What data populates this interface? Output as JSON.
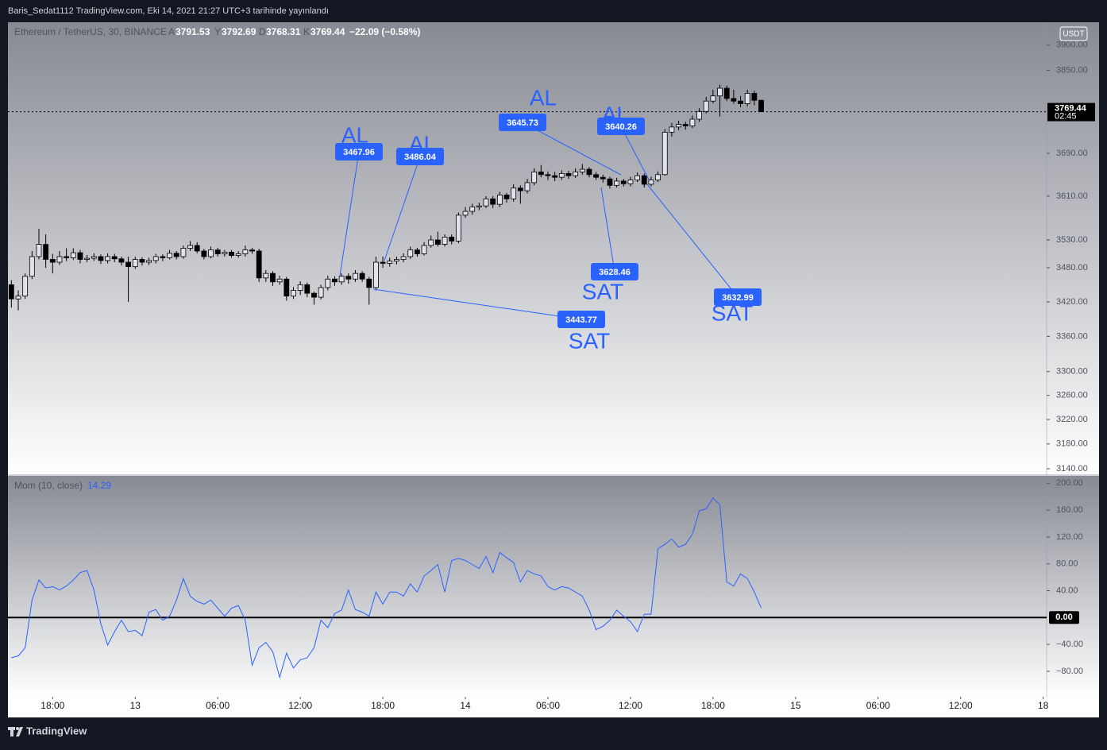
{
  "header": {
    "title": "Baris_Sedat1112 TradingView.com, Eki 14, 2021 21:27 UTC+3 tarihinde yayınlandı"
  },
  "footer": {
    "brand": "TradingView"
  },
  "chart_data": [
    {
      "type": "candlestick",
      "title": "Ethereum / TetherUS, 30, BINANCE",
      "ohlc_labels": [
        "A",
        "Y",
        "D",
        "K"
      ],
      "change_label": "−22.09 (−0.58%)",
      "currency": "USDT",
      "countdown": "02:45",
      "log_scale": true,
      "grid": false,
      "colors": {
        "up": "#e0e3eb",
        "down": "#000000",
        "wick": "#000000",
        "annotation": "#2962ff"
      },
      "xlim": [
        -0.5,
        150.5
      ],
      "ylim": [
        3131,
        3946
      ],
      "yticks": [
        {
          "value": 3900,
          "label": "3900.00"
        },
        {
          "value": 3850,
          "label": "3850.00"
        },
        {
          "value": 3690,
          "label": "3690.00"
        },
        {
          "value": 3610,
          "label": "3610.00"
        },
        {
          "value": 3530,
          "label": "3530.00"
        },
        {
          "value": 3480,
          "label": "3480.00"
        },
        {
          "value": 3420,
          "label": "3420.00"
        },
        {
          "value": 3360,
          "label": "3360.00"
        },
        {
          "value": 3300,
          "label": "3300.00"
        },
        {
          "value": 3260,
          "label": "3260.00"
        },
        {
          "value": 3220,
          "label": "3220.00"
        },
        {
          "value": 3180,
          "label": "3180.00"
        },
        {
          "value": 3140,
          "label": "3140.00"
        }
      ],
      "ohlc": [
        [
          3450,
          3458,
          3410,
          3425
        ],
        [
          3425,
          3440,
          3405,
          3430
        ],
        [
          3430,
          3470,
          3425,
          3465
        ],
        [
          3465,
          3510,
          3460,
          3500
        ],
        [
          3500,
          3550,
          3495,
          3522
        ],
        [
          3522,
          3540,
          3480,
          3495
        ],
        [
          3495,
          3505,
          3470,
          3490
        ],
        [
          3490,
          3510,
          3485,
          3500
        ],
        [
          3500,
          3515,
          3492,
          3498
        ],
        [
          3498,
          3515,
          3494,
          3507
        ],
        [
          3507,
          3512,
          3488,
          3495
        ],
        [
          3495,
          3503,
          3490,
          3497
        ],
        [
          3497,
          3506,
          3492,
          3500
        ],
        [
          3500,
          3504,
          3487,
          3493
        ],
        [
          3493,
          3506,
          3488,
          3500
        ],
        [
          3500,
          3505,
          3490,
          3496
        ],
        [
          3496,
          3500,
          3484,
          3490
        ],
        [
          3490,
          3500,
          3420,
          3482
        ],
        [
          3482,
          3500,
          3478,
          3495
        ],
        [
          3495,
          3499,
          3484,
          3490
        ],
        [
          3490,
          3498,
          3485,
          3493
        ],
        [
          3493,
          3505,
          3488,
          3500
        ],
        [
          3500,
          3504,
          3492,
          3498
        ],
        [
          3498,
          3512,
          3495,
          3506
        ],
        [
          3506,
          3510,
          3495,
          3500
        ],
        [
          3500,
          3520,
          3496,
          3515
        ],
        [
          3515,
          3528,
          3510,
          3520
        ],
        [
          3520,
          3526,
          3506,
          3510
        ],
        [
          3510,
          3514,
          3495,
          3500
        ],
        [
          3500,
          3518,
          3497,
          3512
        ],
        [
          3512,
          3516,
          3500,
          3505
        ],
        [
          3505,
          3512,
          3500,
          3508
        ],
        [
          3508,
          3512,
          3498,
          3502
        ],
        [
          3502,
          3510,
          3498,
          3505
        ],
        [
          3505,
          3520,
          3500,
          3512
        ],
        [
          3512,
          3516,
          3505,
          3510
        ],
        [
          3510,
          3514,
          3455,
          3462
        ],
        [
          3462,
          3476,
          3455,
          3470
        ],
        [
          3470,
          3474,
          3448,
          3455
        ],
        [
          3455,
          3466,
          3450,
          3460
        ],
        [
          3460,
          3464,
          3422,
          3430
        ],
        [
          3430,
          3446,
          3425,
          3440
        ],
        [
          3440,
          3456,
          3432,
          3450
        ],
        [
          3450,
          3454,
          3428,
          3435
        ],
        [
          3435,
          3438,
          3415,
          3428
        ],
        [
          3428,
          3450,
          3424,
          3445
        ],
        [
          3445,
          3466,
          3440,
          3460
        ],
        [
          3460,
          3465,
          3448,
          3455
        ],
        [
          3455,
          3470,
          3450,
          3465
        ],
        [
          3465,
          3470,
          3452,
          3460
        ],
        [
          3460,
          3476,
          3455,
          3470
        ],
        [
          3470,
          3474,
          3455,
          3460
        ],
        [
          3460,
          3464,
          3415,
          3445
        ],
        [
          3445,
          3500,
          3440,
          3490
        ],
        [
          3490,
          3500,
          3480,
          3488
        ],
        [
          3488,
          3498,
          3482,
          3492
        ],
        [
          3492,
          3500,
          3486,
          3495
        ],
        [
          3495,
          3506,
          3490,
          3500
        ],
        [
          3500,
          3518,
          3496,
          3512
        ],
        [
          3512,
          3516,
          3500,
          3505
        ],
        [
          3505,
          3526,
          3502,
          3520
        ],
        [
          3520,
          3538,
          3516,
          3530
        ],
        [
          3530,
          3545,
          3518,
          3522
        ],
        [
          3522,
          3540,
          3518,
          3535
        ],
        [
          3535,
          3540,
          3522,
          3528
        ],
        [
          3528,
          3580,
          3524,
          3575
        ],
        [
          3575,
          3590,
          3570,
          3582
        ],
        [
          3582,
          3596,
          3576,
          3590
        ],
        [
          3590,
          3598,
          3584,
          3592
        ],
        [
          3592,
          3610,
          3588,
          3605
        ],
        [
          3605,
          3610,
          3588,
          3595
        ],
        [
          3595,
          3618,
          3590,
          3612
        ],
        [
          3612,
          3616,
          3598,
          3605
        ],
        [
          3605,
          3632,
          3600,
          3625
        ],
        [
          3625,
          3630,
          3596,
          3620
        ],
        [
          3620,
          3642,
          3615,
          3635
        ],
        [
          3635,
          3662,
          3630,
          3655
        ],
        [
          3655,
          3668,
          3645,
          3650
        ],
        [
          3650,
          3656,
          3640,
          3648
        ],
        [
          3648,
          3655,
          3638,
          3645
        ],
        [
          3645,
          3658,
          3640,
          3652
        ],
        [
          3652,
          3657,
          3642,
          3648
        ],
        [
          3648,
          3662,
          3644,
          3655
        ],
        [
          3655,
          3670,
          3650,
          3660
        ],
        [
          3660,
          3664,
          3645,
          3650
        ],
        [
          3650,
          3655,
          3640,
          3645
        ],
        [
          3645,
          3650,
          3635,
          3642
        ],
        [
          3642,
          3646,
          3624,
          3630
        ],
        [
          3630,
          3644,
          3626,
          3638
        ],
        [
          3638,
          3642,
          3628,
          3633
        ],
        [
          3633,
          3646,
          3628,
          3640
        ],
        [
          3640,
          3654,
          3636,
          3648
        ],
        [
          3648,
          3652,
          3626,
          3632
        ],
        [
          3632,
          3646,
          3628,
          3640
        ],
        [
          3640,
          3656,
          3636,
          3650
        ],
        [
          3650,
          3736,
          3648,
          3730
        ],
        [
          3730,
          3748,
          3722,
          3740
        ],
        [
          3740,
          3752,
          3734,
          3745
        ],
        [
          3745,
          3750,
          3735,
          3742
        ],
        [
          3742,
          3762,
          3738,
          3755
        ],
        [
          3755,
          3776,
          3750,
          3770
        ],
        [
          3770,
          3798,
          3766,
          3790
        ],
        [
          3790,
          3812,
          3786,
          3800
        ],
        [
          3800,
          3822,
          3760,
          3815
        ],
        [
          3815,
          3820,
          3790,
          3795
        ],
        [
          3795,
          3812,
          3785,
          3790
        ],
        [
          3790,
          3800,
          3778,
          3785
        ],
        [
          3785,
          3812,
          3780,
          3805
        ],
        [
          3805,
          3810,
          3782,
          3791.53
        ],
        [
          3791.53,
          3792.69,
          3768.31,
          3769.44
        ]
      ],
      "annotations": [
        {
          "text": "AL",
          "price": 3467.96
        },
        {
          "text": "AL",
          "price": 3486.04
        },
        {
          "text": "AL",
          "price": 3645.73
        },
        {
          "text": "AL",
          "price": 3640.26
        },
        {
          "text": "SAT",
          "price": 3628.46
        },
        {
          "text": "SAT",
          "price": 3443.77
        },
        {
          "text": "SAT",
          "price": 3632.99
        }
      ]
    },
    {
      "type": "line",
      "title": "Mom (10, close)",
      "color": "#2962ff",
      "grid": false,
      "xlim": [
        -0.5,
        150.5
      ],
      "ylim": [
        -118,
        211
      ],
      "xticks": [
        {
          "value": 6,
          "label": "18:00"
        },
        {
          "value": 18,
          "label": "13"
        },
        {
          "value": 30,
          "label": "06:00"
        },
        {
          "value": 42,
          "label": "12:00"
        },
        {
          "value": 54,
          "label": "18:00"
        },
        {
          "value": 66,
          "label": "14"
        },
        {
          "value": 78,
          "label": "06:00"
        },
        {
          "value": 90,
          "label": "12:00"
        },
        {
          "value": 102,
          "label": "18:00"
        },
        {
          "value": 114,
          "label": "15"
        },
        {
          "value": 126,
          "label": "06:00"
        },
        {
          "value": 138,
          "label": "12:00"
        },
        {
          "value": 150,
          "label": "18"
        }
      ],
      "yticks": [
        {
          "value": 200,
          "label": "200.00"
        },
        {
          "value": 160,
          "label": "160.00"
        },
        {
          "value": 120,
          "label": "120.00"
        },
        {
          "value": 80,
          "label": "80.00"
        },
        {
          "value": 40,
          "label": "40.00"
        },
        {
          "value": 0,
          "label": "0.00"
        },
        {
          "value": -40,
          "label": "−40.00"
        },
        {
          "value": -80,
          "label": "−80.00"
        }
      ],
      "values": [
        -60,
        -57,
        -45,
        26,
        56,
        44,
        46,
        41,
        47,
        56,
        67,
        70,
        41,
        -9,
        -41,
        -21,
        -4,
        -21,
        -19,
        -27,
        8,
        12,
        -4,
        2,
        26,
        58,
        32,
        24,
        20,
        26,
        14,
        2,
        14,
        18,
        -4,
        -71,
        -45,
        -37,
        -51,
        -89,
        -53,
        -75,
        -63,
        -60,
        -45,
        -4,
        -15,
        6,
        11,
        41,
        12,
        8,
        2,
        38,
        20,
        38,
        38,
        32,
        50,
        38,
        62,
        70,
        79,
        38,
        85,
        88,
        85,
        79,
        73,
        91,
        67,
        97,
        89,
        82,
        53,
        70,
        65,
        62,
        46,
        41,
        46,
        44,
        38,
        32,
        11,
        -18,
        -13,
        -4,
        11,
        2,
        -6,
        -21,
        5,
        5,
        103,
        109,
        117,
        105,
        109,
        124,
        159,
        162,
        178,
        168,
        53,
        47,
        65,
        58,
        38,
        14.29
      ]
    }
  ]
}
